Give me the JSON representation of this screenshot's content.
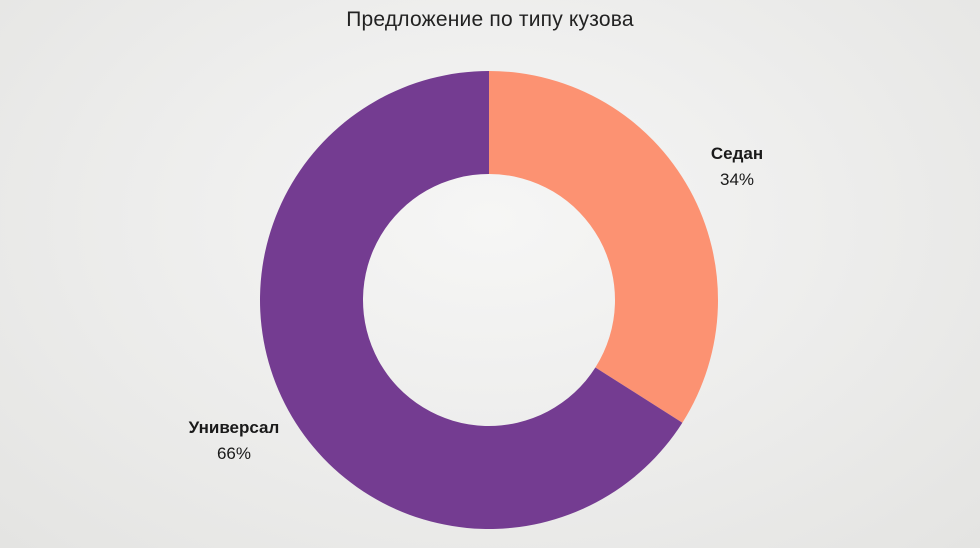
{
  "chart_data": {
    "type": "pie",
    "variant": "donut",
    "title": "Предложение по типу кузова",
    "slices": [
      {
        "label": "Седан",
        "value": 34,
        "value_label": "34%",
        "color": "#fc9272"
      },
      {
        "label": "Универсал",
        "value": 66,
        "value_label": "66%",
        "color": "#743c91"
      }
    ],
    "legend": "none",
    "labels": "outside"
  }
}
